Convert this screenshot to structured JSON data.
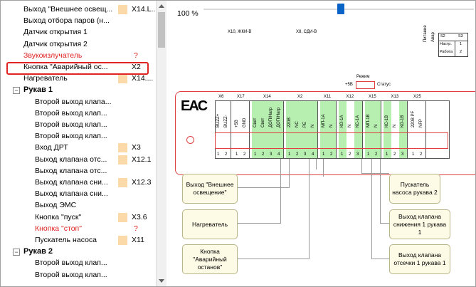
{
  "tree": {
    "rows": [
      {
        "label": "Выход \"Внешнее освещ...",
        "connector": "X14.L...",
        "swatch": true,
        "indent": 32
      },
      {
        "label": "Выход отбора паров (н...",
        "connector": "",
        "swatch": false,
        "indent": 32
      },
      {
        "label": "Датчик открытия 1",
        "connector": "",
        "swatch": false,
        "indent": 32
      },
      {
        "label": "Датчик открытия 2",
        "connector": "",
        "swatch": false,
        "indent": 32
      },
      {
        "label": "Звукоизлучатель",
        "connector": "?",
        "swatch": false,
        "indent": 32,
        "red": true
      },
      {
        "label": "Кнопка \"Аварийный ос...",
        "connector": "X2",
        "swatch": false,
        "indent": 32,
        "selected": true
      },
      {
        "label": "Нагреватель",
        "connector": "X14....",
        "swatch": true,
        "indent": 32
      },
      {
        "label": "Рукав 1",
        "connector": "",
        "swatch": false,
        "indent": 32,
        "group": true,
        "expander": "−"
      },
      {
        "label": "Второй выход клапа...",
        "connector": "",
        "swatch": false,
        "indent": 48
      },
      {
        "label": "Второй выход клап...",
        "connector": "",
        "swatch": false,
        "indent": 48
      },
      {
        "label": "Второй выход клап...",
        "connector": "",
        "swatch": false,
        "indent": 48
      },
      {
        "label": "Второй выход клап...",
        "connector": "",
        "swatch": false,
        "indent": 48
      },
      {
        "label": "Вход ДРТ",
        "connector": "X3",
        "swatch": true,
        "indent": 48
      },
      {
        "label": "Выход клапана отс...",
        "connector": "X12.1",
        "swatch": true,
        "indent": 48
      },
      {
        "label": "Выход клапана отс...",
        "connector": "",
        "swatch": false,
        "indent": 48
      },
      {
        "label": "Выход клапана сни...",
        "connector": "X12.3",
        "swatch": true,
        "indent": 48
      },
      {
        "label": "Выход клапана сни...",
        "connector": "",
        "swatch": false,
        "indent": 48
      },
      {
        "label": "Выход ЭМС",
        "connector": "",
        "swatch": false,
        "indent": 48
      },
      {
        "label": "Кнопка \"пуск\"",
        "connector": "X3.6",
        "swatch": true,
        "indent": 48
      },
      {
        "label": "Кнопка \"стоп\"",
        "connector": "?",
        "swatch": false,
        "indent": 48,
        "red": true
      },
      {
        "label": "Пускатель насоса",
        "connector": "X11",
        "swatch": true,
        "indent": 48
      },
      {
        "label": "Рукав 2",
        "connector": "",
        "swatch": false,
        "indent": 32,
        "group": true,
        "expander": "−"
      },
      {
        "label": "Второй выход клап...",
        "connector": "",
        "swatch": false,
        "indent": 48
      },
      {
        "label": "Второй выход клап...",
        "connector": "",
        "swatch": false,
        "indent": 48
      }
    ]
  },
  "canvas": {
    "zoom": "100 %",
    "top_labels": [
      "X10, ЖКИ-В",
      "X8, СДИ-В"
    ],
    "pitanie": "Питание",
    "avar": "Авар",
    "mini_table": {
      "headers": [
        "S2",
        "S3"
      ],
      "rows": [
        [
          "Настр.",
          "1"
        ],
        [
          "Работа",
          "2"
        ]
      ]
    },
    "mode_label": "Режим",
    "plus5": "+5В",
    "status": "Статус",
    "eac": "EAC",
    "connectors": [
      {
        "id": "X6",
        "pins": [
          "BUZZ+",
          "BUZZ-"
        ],
        "nums": [
          "1",
          "2"
        ]
      },
      {
        "id": "X17",
        "pins": [
          "+5В",
          "GND"
        ],
        "nums": [
          "1",
          "2"
        ]
      },
      {
        "id": "X14",
        "pins": [
          "Свет",
          "Свет",
          "ДОП/Нагр",
          "ДОП/Нагр"
        ],
        "nums": [
          "1",
          "2",
          "3",
          "4"
        ]
      },
      {
        "id": "X2",
        "pins": [
          "220В",
          "NC",
          "PE",
          "N"
        ],
        "nums": [
          "1",
          "2",
          "3",
          "4"
        ]
      },
      {
        "id": "X11",
        "pins": [
          "МП-1А",
          "N"
        ],
        "nums": [
          "1",
          "2"
        ]
      },
      {
        "id": "X12",
        "pins": [
          "КО-1А",
          "N",
          "КС-1А"
        ],
        "nums": [
          "1",
          "2",
          "3"
        ]
      },
      {
        "id": "X15",
        "pins": [
          "МП-1В",
          "N"
        ],
        "nums": [
          "1",
          "2"
        ]
      },
      {
        "id": "X13",
        "pins": [
          "КС-1В",
          "N",
          "КО-1В"
        ],
        "nums": [
          "1",
          "2",
          "3"
        ]
      },
      {
        "id": "X25",
        "pins": [
          "220В РF",
          "NFP"
        ],
        "nums": [
          "1",
          "2"
        ]
      }
    ],
    "boxes": [
      {
        "text": "Выход \"Внешнее освещение\""
      },
      {
        "text": "Нагреватель"
      },
      {
        "text": "Кнопка \"Аварийный останов\""
      },
      {
        "text": "Пускатель насоса рукава 2"
      },
      {
        "text": "Выход клапана снижения 1 рукава 1"
      },
      {
        "text": "Выход клапана отсечки 1 рукава 1"
      }
    ]
  }
}
